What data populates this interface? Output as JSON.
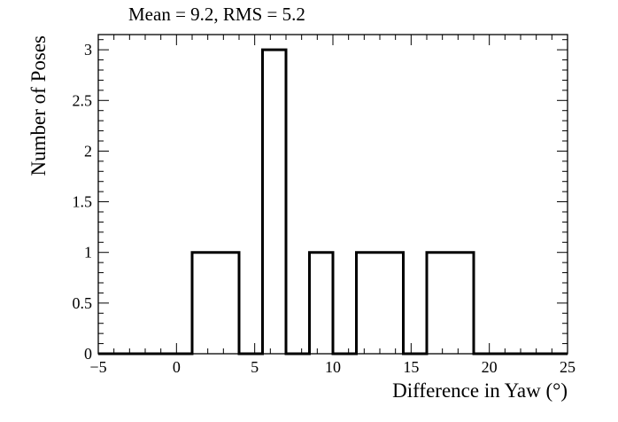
{
  "chart_data": {
    "type": "bar",
    "title": "Mean = 9.2, RMS = 5.2",
    "xlabel": "Difference in Yaw (°)",
    "ylabel": "Number of Poses",
    "xlim": [
      -5,
      25
    ],
    "ylim": [
      0,
      3.15
    ],
    "x_ticks": [
      -5,
      0,
      5,
      10,
      15,
      20,
      25
    ],
    "x_tick_labels": [
      "−5",
      "0",
      "5",
      "10",
      "15",
      "20",
      "25"
    ],
    "y_ticks": [
      0,
      0.5,
      1,
      1.5,
      2,
      2.5,
      3
    ],
    "y_tick_labels": [
      "0",
      "0.5",
      "1",
      "1.5",
      "2",
      "2.5",
      "3"
    ],
    "bin_width": 1.5,
    "bin_start": -5,
    "values": [
      0,
      0,
      0,
      0,
      1,
      1,
      0,
      3,
      0,
      1,
      0,
      1,
      1,
      0,
      1,
      1,
      0,
      0,
      0,
      0
    ],
    "grid": false,
    "legend": "none",
    "color": "#000000"
  }
}
